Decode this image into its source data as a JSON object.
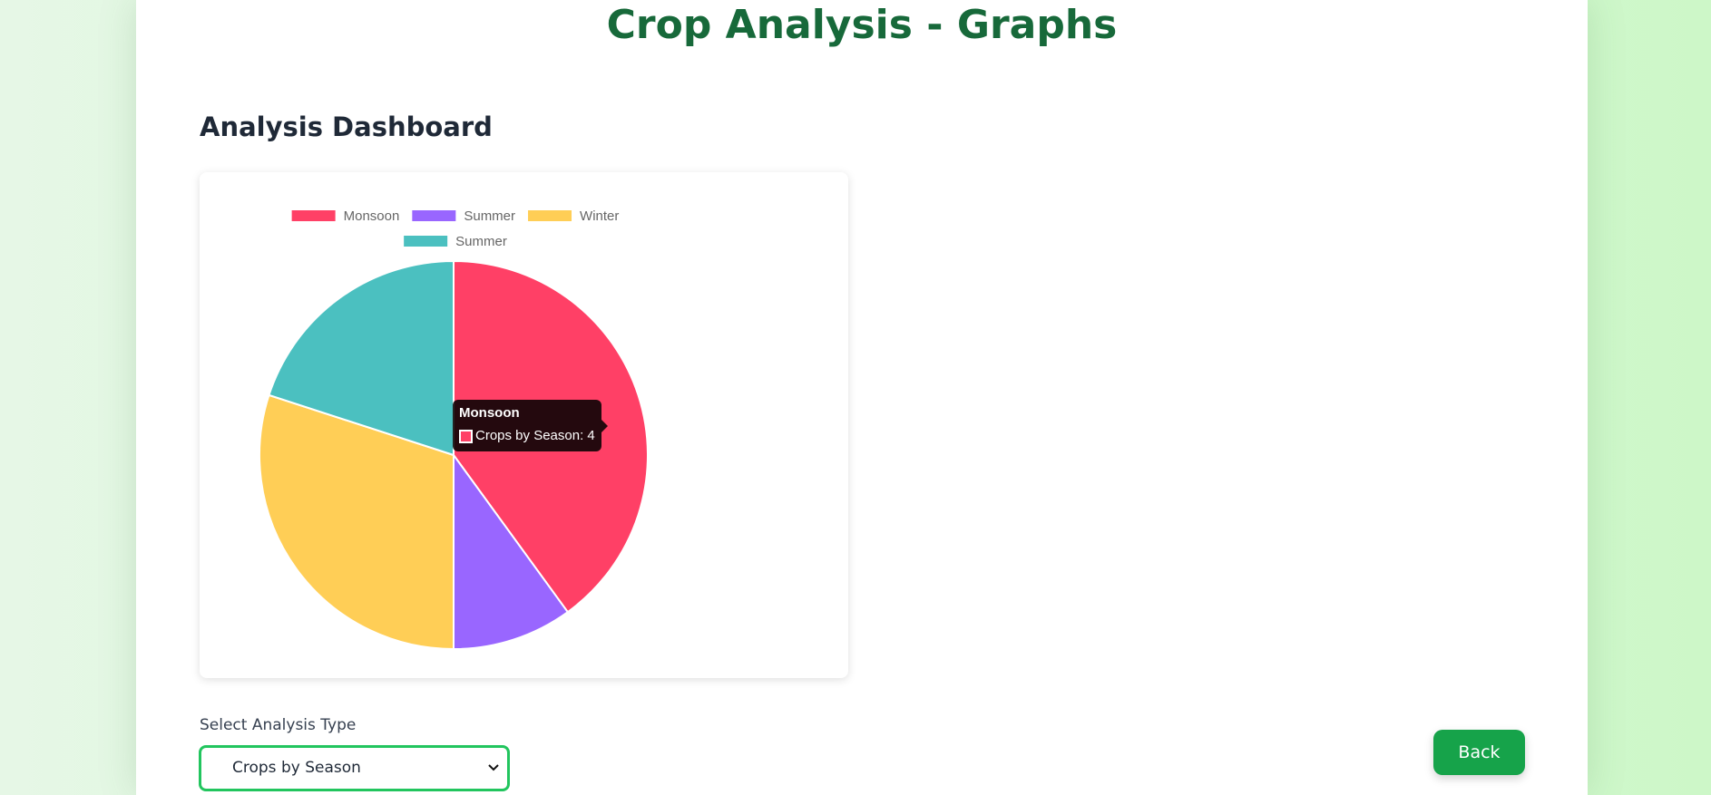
{
  "page": {
    "title": "Crop Analysis - Graphs"
  },
  "dashboard": {
    "title": "Analysis Dashboard"
  },
  "chart_data": {
    "type": "pie",
    "title": "",
    "dataset_label": "Crops by Season",
    "categories": [
      "Monsoon",
      "Summer",
      "Winter",
      "Summer"
    ],
    "values": [
      4,
      1,
      3,
      2
    ],
    "colors": [
      "#ff4066",
      "#9966ff",
      "#ffce56",
      "#4bc0c0"
    ],
    "legend": "top",
    "tooltip": {
      "title": "Monsoon",
      "body": "Crops by Season: 4"
    }
  },
  "controls": {
    "select_label": "Select Analysis Type",
    "select_value": "Crops by Season",
    "back_label": "Back"
  }
}
